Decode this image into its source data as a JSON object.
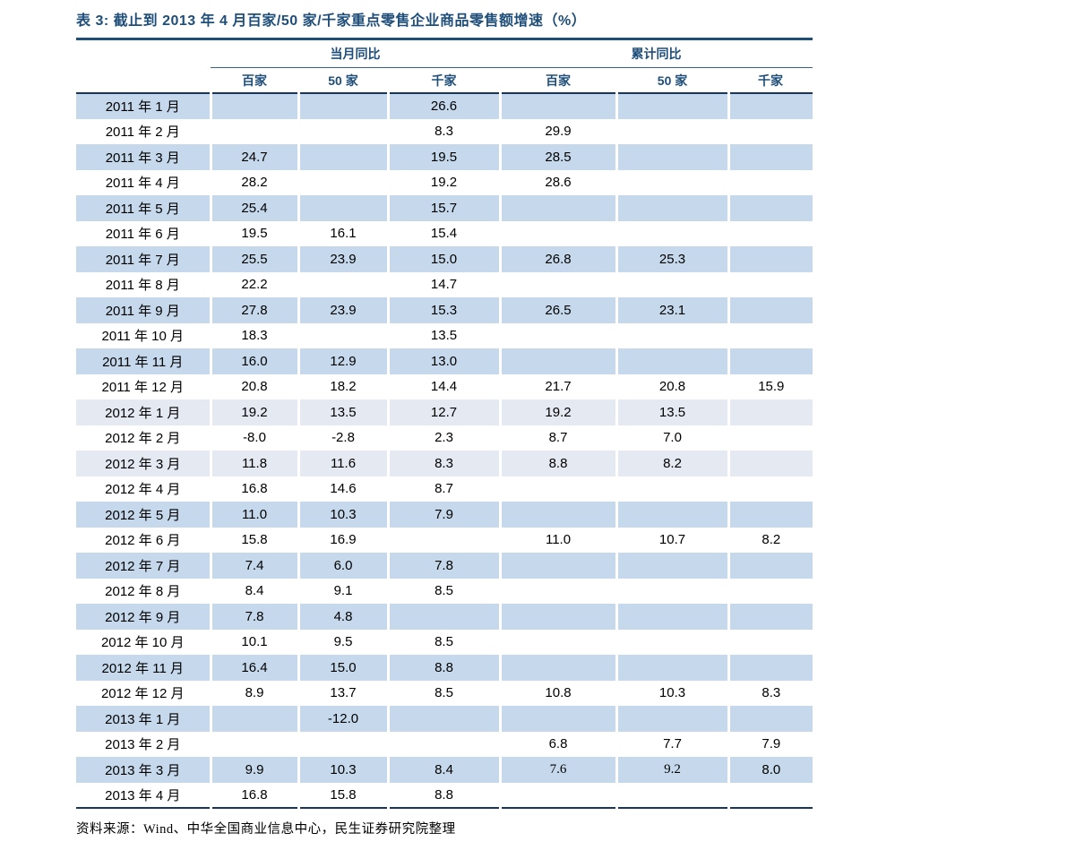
{
  "title": "表 3:  截止到 2013 年 4 月百家/50 家/千家重点零售企业商品零售额增速（%）",
  "colors": {
    "header_blue": "#1F4E79",
    "heavy_line": "#17365D",
    "thin_line": "#365F91",
    "row_blue": "#C6D9EC",
    "row_lightblue": "#E4E9F2",
    "background": "#FFFFFF"
  },
  "table": {
    "group_headers": [
      {
        "label": "当月同比",
        "span": 3
      },
      {
        "label": "累计同比",
        "span": 3
      }
    ],
    "sub_headers": [
      "百家",
      "50 家",
      "千家",
      "百家",
      "50 家",
      "千家"
    ],
    "rows": [
      {
        "label": "2011 年 1 月",
        "shade": "blue",
        "cells": [
          "",
          "",
          "26.6",
          "",
          "",
          ""
        ]
      },
      {
        "label": "2011 年 2 月",
        "shade": "white",
        "cells": [
          "",
          "",
          "8.3",
          "29.9",
          "",
          ""
        ]
      },
      {
        "label": "2011 年 3 月",
        "shade": "blue",
        "cells": [
          "24.7",
          "",
          "19.5",
          "28.5",
          "",
          ""
        ]
      },
      {
        "label": "2011 年 4 月",
        "shade": "white",
        "cells": [
          "28.2",
          "",
          "19.2",
          "28.6",
          "",
          ""
        ]
      },
      {
        "label": "2011 年 5 月",
        "shade": "blue",
        "cells": [
          "25.4",
          "",
          "15.7",
          "",
          "",
          ""
        ]
      },
      {
        "label": "2011 年 6 月",
        "shade": "white",
        "cells": [
          "19.5",
          "16.1",
          "15.4",
          "",
          "",
          ""
        ]
      },
      {
        "label": "2011 年 7 月",
        "shade": "blue",
        "cells": [
          "25.5",
          "23.9",
          "15.0",
          "26.8",
          "25.3",
          ""
        ]
      },
      {
        "label": "2011 年 8 月",
        "shade": "white",
        "cells": [
          "22.2",
          "",
          "14.7",
          "",
          "",
          ""
        ]
      },
      {
        "label": "2011 年 9 月",
        "shade": "blue",
        "cells": [
          "27.8",
          "23.9",
          "15.3",
          "26.5",
          "23.1",
          ""
        ]
      },
      {
        "label": "2011 年 10 月",
        "shade": "white",
        "cells": [
          "18.3",
          "",
          "13.5",
          "",
          "",
          ""
        ]
      },
      {
        "label": "2011 年 11 月",
        "shade": "blue",
        "cells": [
          "16.0",
          "12.9",
          "13.0",
          "",
          "",
          ""
        ]
      },
      {
        "label": "2011 年 12 月",
        "shade": "white",
        "cells": [
          "20.8",
          "18.2",
          "14.4",
          "21.7",
          "20.8",
          "15.9"
        ]
      },
      {
        "label": "2012 年 1 月",
        "shade": "lightblue",
        "cells": [
          "19.2",
          "13.5",
          "12.7",
          "19.2",
          "13.5",
          ""
        ]
      },
      {
        "label": "2012 年 2 月",
        "shade": "white",
        "cells": [
          "-8.0",
          "-2.8",
          "2.3",
          "8.7",
          "7.0",
          ""
        ]
      },
      {
        "label": "2012 年 3 月",
        "shade": "lightblue",
        "cells": [
          "11.8",
          "11.6",
          "8.3",
          "8.8",
          "8.2",
          ""
        ]
      },
      {
        "label": "2012 年 4 月",
        "shade": "white",
        "cells": [
          "16.8",
          "14.6",
          "8.7",
          "",
          "",
          ""
        ]
      },
      {
        "label": "2012 年 5 月",
        "shade": "blue",
        "cells": [
          "11.0",
          "10.3",
          "7.9",
          "",
          "",
          ""
        ]
      },
      {
        "label": "2012 年 6 月",
        "shade": "white",
        "cells": [
          "15.8",
          "16.9",
          "",
          "11.0",
          "10.7",
          "8.2"
        ]
      },
      {
        "label": "2012 年 7 月",
        "shade": "blue",
        "cells": [
          "7.4",
          "6.0",
          "7.8",
          "",
          "",
          ""
        ]
      },
      {
        "label": "2012 年 8 月",
        "shade": "white",
        "cells": [
          "8.4",
          "9.1",
          "8.5",
          "",
          "",
          ""
        ]
      },
      {
        "label": "2012 年 9 月",
        "shade": "blue",
        "cells": [
          "7.8",
          "4.8",
          "",
          "",
          "",
          ""
        ]
      },
      {
        "label": "2012 年 10 月",
        "shade": "white",
        "cells": [
          "10.1",
          "9.5",
          "8.5",
          "",
          "",
          ""
        ]
      },
      {
        "label": "2012 年 11 月",
        "shade": "blue",
        "cells": [
          "16.4",
          "15.0",
          "8.8",
          "",
          "",
          ""
        ]
      },
      {
        "label": "2012 年 12 月",
        "shade": "white",
        "cells": [
          "8.9",
          "13.7",
          "8.5",
          "10.8",
          "10.3",
          "8.3"
        ]
      },
      {
        "label": "2013 年 1 月",
        "shade": "blue",
        "cells": [
          "",
          "-12.0",
          "",
          "",
          "",
          ""
        ]
      },
      {
        "label": "2013 年 2 月",
        "shade": "white",
        "cells": [
          "",
          "",
          "",
          "6.8",
          "7.7",
          "7.9"
        ]
      },
      {
        "label": "2013 年 3 月",
        "shade": "blue",
        "cells": [
          "9.9",
          "10.3",
          "8.4",
          {
            "text": "7.6",
            "serif": true
          },
          {
            "text": "9.2",
            "serif": true
          },
          "8.0"
        ]
      },
      {
        "label": "2013 年 4 月",
        "shade": "white",
        "cells": [
          "16.8",
          "15.8",
          "8.8",
          "",
          "",
          ""
        ]
      }
    ]
  },
  "footer": {
    "source": "资料来源：Wind、中华全国商业信息中心，民生证券研究院整理"
  }
}
